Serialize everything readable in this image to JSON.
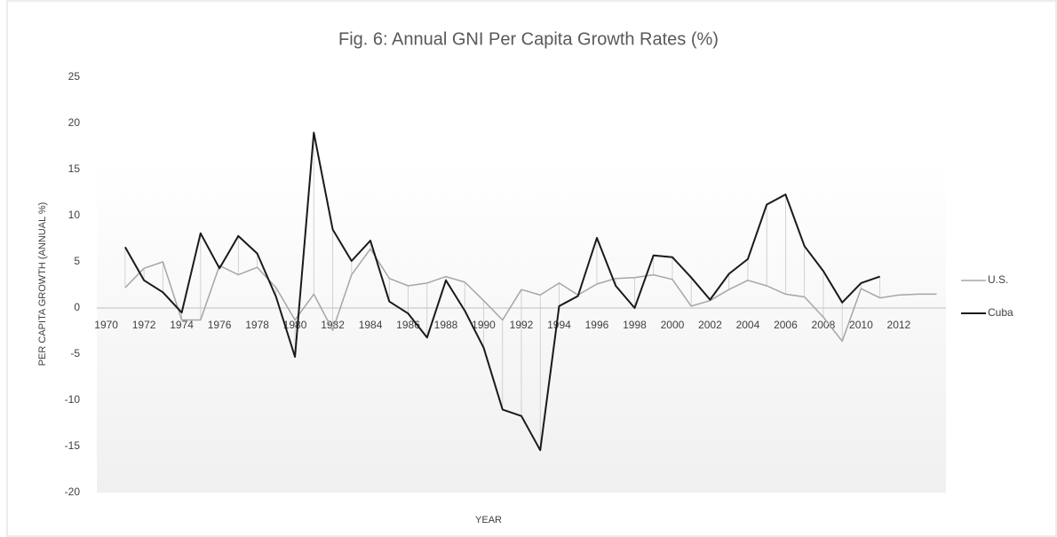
{
  "chart_data": {
    "type": "line",
    "title": "Fig. 6: Annual GNI Per Capita Growth Rates (%)",
    "x_label": "YEAR",
    "y_label": "PER CAPITA GROWTH (ANNUAL %)",
    "categories": [
      "1970",
      null,
      "1972",
      null,
      "1974",
      null,
      "1976",
      null,
      "1978",
      null,
      "1980",
      null,
      "1982",
      null,
      "1984",
      null,
      "1986",
      null,
      "1988",
      null,
      "1990",
      null,
      "1992",
      null,
      "1994",
      null,
      "1996",
      null,
      "1998",
      null,
      "2000",
      null,
      "2002",
      null,
      "2004",
      null,
      "2006",
      null,
      "2008",
      null,
      "2010",
      null,
      "2012",
      null,
      null
    ],
    "series": [
      {
        "name": "U.S.",
        "color": "#a6a6a6",
        "values": [
          null,
          2.2,
          4.3,
          5.0,
          -1.3,
          -1.3,
          4.6,
          3.6,
          4.4,
          2.2,
          -1.3,
          1.5,
          -2.4,
          3.6,
          6.4,
          3.2,
          2.4,
          2.7,
          3.4,
          2.8,
          0.8,
          -1.3,
          2.0,
          1.4,
          2.7,
          1.4,
          2.6,
          3.2,
          3.3,
          3.6,
          3.1,
          0.2,
          0.8,
          2.0,
          3.0,
          2.4,
          1.5,
          1.2,
          -1.0,
          -3.6,
          2.1,
          1.1,
          1.4,
          1.5,
          1.5
        ]
      },
      {
        "name": "Cuba",
        "color": "#1a1a1a",
        "values": [
          null,
          6.6,
          3.0,
          1.7,
          -0.5,
          8.1,
          4.3,
          7.8,
          5.9,
          1.2,
          -5.3,
          19.0,
          8.5,
          5.1,
          7.3,
          0.7,
          -0.6,
          -3.2,
          3.0,
          -0.3,
          -4.3,
          -11.0,
          -11.7,
          -15.4,
          0.2,
          1.3,
          7.6,
          2.4,
          0.0,
          5.7,
          5.5,
          3.3,
          0.9,
          3.7,
          5.3,
          11.2,
          12.3,
          6.7,
          4.0,
          0.6,
          2.7,
          3.4,
          null,
          null,
          null
        ]
      }
    ],
    "ylim": [
      -20,
      25
    ],
    "yticks": [
      -20,
      -15,
      -10,
      -5,
      0,
      5,
      10,
      15,
      20,
      25
    ],
    "legend": "right"
  }
}
